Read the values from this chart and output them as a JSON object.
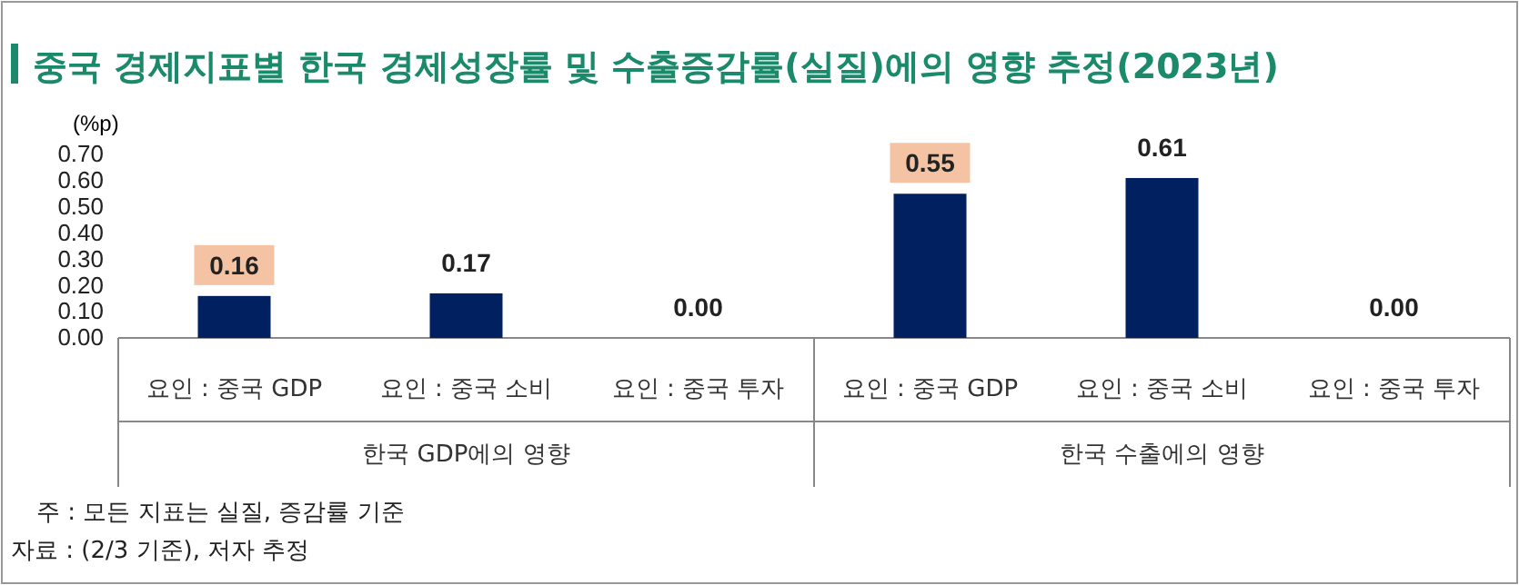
{
  "chart_data": {
    "type": "bar",
    "title": "중국 경제지표별 한국 경제성장률 및 수출증감률(실질)에의 영향 추정(2023년)",
    "ylabel": "(%p)",
    "categories": [
      "요인 : 중국 GDP",
      "요인 : 중국 소비",
      "요인 : 중국 투자",
      "요인 : 중국 GDP",
      "요인 : 중국 소비",
      "요인 : 중국 투자"
    ],
    "values": [
      0.16,
      0.17,
      0.0,
      0.55,
      0.61,
      0.0
    ],
    "color": "#002060",
    "value_labels": [
      "0.16",
      "0.17",
      "0.00",
      "0.55",
      "0.61",
      "0.00"
    ],
    "ylim": [
      0,
      0.7
    ],
    "yticks": [
      {
        "value": 0,
        "label": "0.00"
      },
      {
        "value": 0.1,
        "label": "0.10"
      },
      {
        "value": 0.2,
        "label": "0.20"
      },
      {
        "value": 0.3,
        "label": "0.30"
      },
      {
        "value": 0.4,
        "label": "0.40"
      },
      {
        "value": 0.5,
        "label": "0.50"
      },
      {
        "value": 0.6,
        "label": "0.60"
      },
      {
        "value": 0.7,
        "label": "0.70"
      }
    ],
    "grid": false,
    "annotations": [
      "한국 GDP에의 영향",
      "한국 수출에의 영향",
      "주 : 모든 지표는 실질, 증감률 기준",
      "자료 : (2/3 기준), 저자 추정"
    ]
  }
}
